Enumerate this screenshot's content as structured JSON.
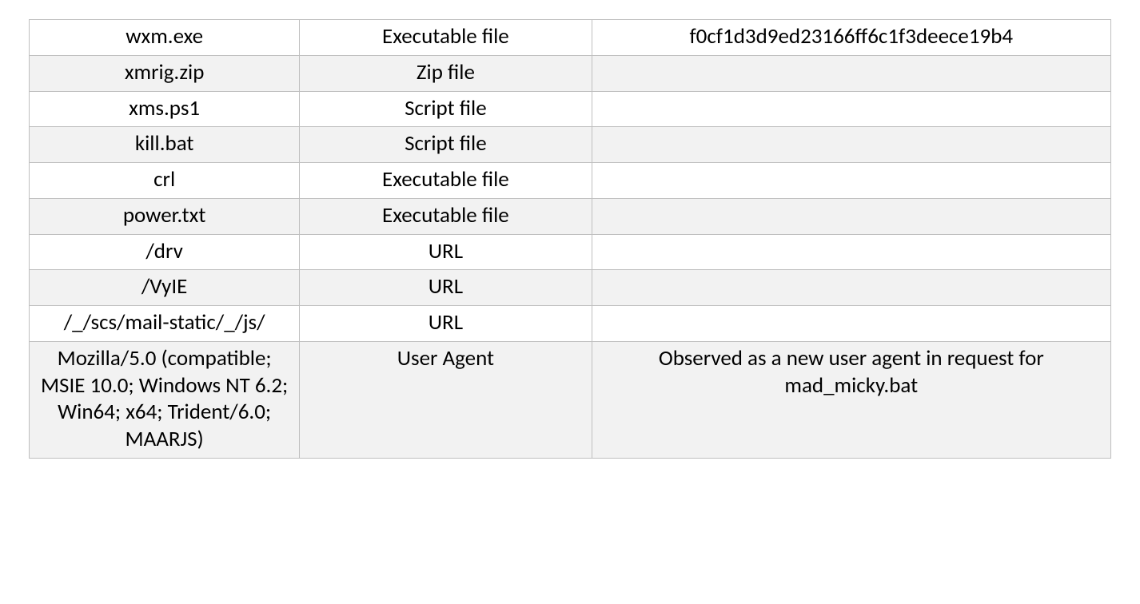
{
  "table": {
    "type": "table",
    "background_color": "#ffffff",
    "alt_row_color": "#f2f2f2",
    "border_color": "#bfbfbf",
    "text_color": "#000000",
    "font_family": "Calibri",
    "cell_fontsize": 27,
    "column_widths_pct": [
      25,
      27,
      48
    ],
    "column_alignment": [
      "center",
      "center",
      "center"
    ],
    "rows": [
      {
        "c1": "wxm.exe",
        "c2": "Executable file",
        "c3": "f0cf1d3d9ed23166ff6c1f3deece19b4",
        "alt": false
      },
      {
        "c1": "xmrig.zip",
        "c2": "Zip file",
        "c3": "",
        "alt": true
      },
      {
        "c1": "xms.ps1",
        "c2": "Script file",
        "c3": "",
        "alt": false
      },
      {
        "c1": "kill.bat",
        "c2": "Script file",
        "c3": "",
        "alt": true
      },
      {
        "c1": "crl",
        "c2": "Executable file",
        "c3": "",
        "alt": false
      },
      {
        "c1": "power.txt",
        "c2": "Executable file",
        "c3": "",
        "alt": true
      },
      {
        "c1": "/drv",
        "c2": "URL",
        "c3": "",
        "alt": false
      },
      {
        "c1": "/VyIE",
        "c2": "URL",
        "c3": "",
        "alt": true
      },
      {
        "c1": "/_/scs/mail-static/_/js/",
        "c2": "URL",
        "c3": "",
        "alt": false
      },
      {
        "c1": "Mozilla/5.0 (compatible; MSIE 10.0; Windows NT 6.2; Win64; x64; Trident/6.0; MAARJS)",
        "c2": "User Agent",
        "c3": "Observed as a new user agent in request for mad_micky.bat",
        "alt": true
      }
    ]
  }
}
